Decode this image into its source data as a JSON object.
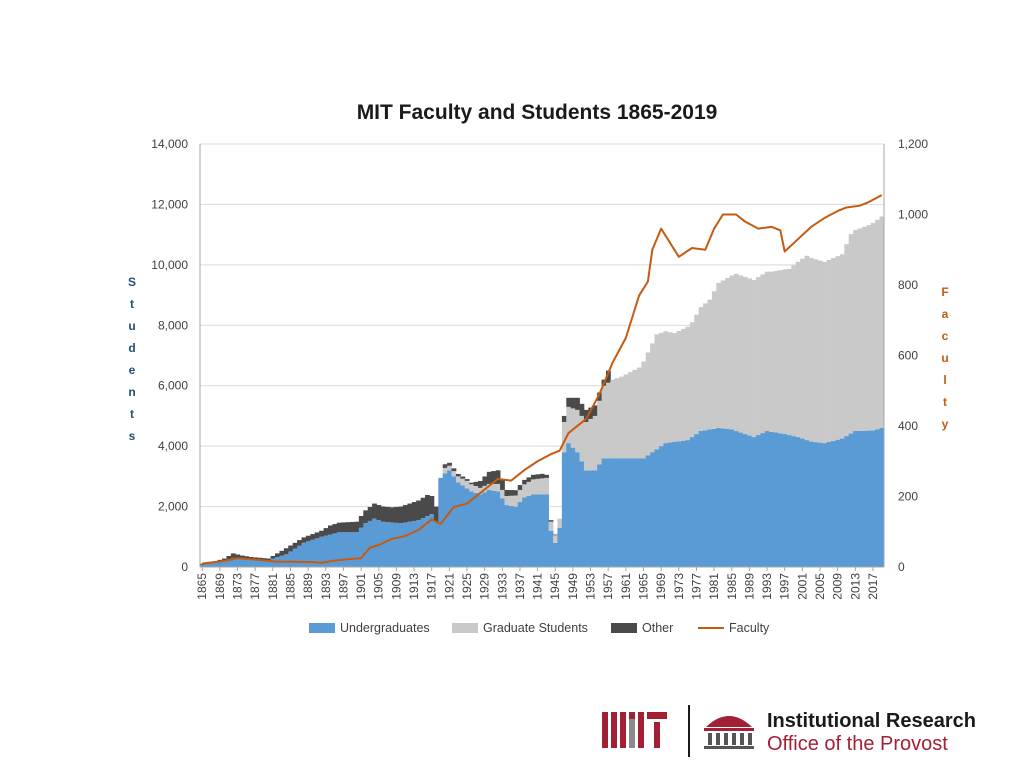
{
  "chart_data": {
    "type": "area",
    "title": "MIT Faculty and Students 1865-2019",
    "ylabel": "Students",
    "y2label": "Faculty",
    "ylim": [
      0,
      14000
    ],
    "y2lim": [
      0,
      1200
    ],
    "yticks": [
      "0",
      "2,000",
      "4,000",
      "6,000",
      "8,000",
      "10,000",
      "12,000",
      "14,000"
    ],
    "y2ticks": [
      "0",
      "200",
      "400",
      "600",
      "800",
      "1,000",
      "1,200"
    ],
    "xtick_labels": [
      "1865",
      "1869",
      "1873",
      "1877",
      "1881",
      "1885",
      "1889",
      "1893",
      "1897",
      "1901",
      "1905",
      "1909",
      "1913",
      "1917",
      "1921",
      "1925",
      "1929",
      "1933",
      "1937",
      "1941",
      "1945",
      "1949",
      "1953",
      "1957",
      "1961",
      "1965",
      "1969",
      "1973",
      "1977",
      "1981",
      "1985",
      "1989",
      "1993",
      "1997",
      "2001",
      "2005",
      "2009",
      "2013",
      "2017"
    ],
    "legend_position": "bottom",
    "grid": true,
    "series": [
      {
        "name": "Undergraduates",
        "color": "#5b9bd5",
        "kind": "stacked-bar",
        "points": [
          [
            1865,
            70
          ],
          [
            1868,
            140
          ],
          [
            1870,
            220
          ],
          [
            1872,
            300
          ],
          [
            1874,
            300
          ],
          [
            1876,
            260
          ],
          [
            1880,
            230
          ],
          [
            1884,
            420
          ],
          [
            1888,
            800
          ],
          [
            1892,
            1000
          ],
          [
            1896,
            1150
          ],
          [
            1900,
            1150
          ],
          [
            1902,
            1450
          ],
          [
            1904,
            1600
          ],
          [
            1906,
            1500
          ],
          [
            1910,
            1450
          ],
          [
            1914,
            1550
          ],
          [
            1917,
            1750
          ],
          [
            1918,
            1500
          ],
          [
            1919,
            2950
          ],
          [
            1920,
            3100
          ],
          [
            1921,
            3200
          ],
          [
            1923,
            2800
          ],
          [
            1926,
            2500
          ],
          [
            1928,
            2400
          ],
          [
            1930,
            2550
          ],
          [
            1932,
            2500
          ],
          [
            1934,
            2050
          ],
          [
            1936,
            2000
          ],
          [
            1938,
            2300
          ],
          [
            1940,
            2400
          ],
          [
            1943,
            2400
          ],
          [
            1944,
            1200
          ],
          [
            1945,
            800
          ],
          [
            1946,
            1300
          ],
          [
            1947,
            3800
          ],
          [
            1948,
            4100
          ],
          [
            1950,
            3800
          ],
          [
            1951,
            3500
          ],
          [
            1952,
            3200
          ],
          [
            1954,
            3200
          ],
          [
            1956,
            3600
          ],
          [
            1960,
            3600
          ],
          [
            1965,
            3600
          ],
          [
            1970,
            4100
          ],
          [
            1975,
            4200
          ],
          [
            1978,
            4500
          ],
          [
            1982,
            4600
          ],
          [
            1985,
            4550
          ],
          [
            1990,
            4300
          ],
          [
            1993,
            4500
          ],
          [
            1997,
            4400
          ],
          [
            2000,
            4300
          ],
          [
            2003,
            4150
          ],
          [
            2006,
            4100
          ],
          [
            2010,
            4250
          ],
          [
            2013,
            4500
          ],
          [
            2017,
            4520
          ],
          [
            2019,
            4600
          ]
        ]
      },
      {
        "name": "Graduate Students",
        "color": "#c9c9c9",
        "kind": "stacked-bar",
        "points": [
          [
            1865,
            0
          ],
          [
            1900,
            0
          ],
          [
            1919,
            0
          ],
          [
            1920,
            180
          ],
          [
            1921,
            150
          ],
          [
            1925,
            250
          ],
          [
            1930,
            200
          ],
          [
            1934,
            300
          ],
          [
            1940,
            500
          ],
          [
            1943,
            550
          ],
          [
            1944,
            300
          ],
          [
            1945,
            250
          ],
          [
            1946,
            300
          ],
          [
            1947,
            1000
          ],
          [
            1948,
            1200
          ],
          [
            1950,
            1400
          ],
          [
            1952,
            1600
          ],
          [
            1954,
            1800
          ],
          [
            1956,
            2400
          ],
          [
            1958,
            2600
          ],
          [
            1960,
            2700
          ],
          [
            1964,
            3000
          ],
          [
            1968,
            3800
          ],
          [
            1970,
            3700
          ],
          [
            1972,
            3600
          ],
          [
            1974,
            3700
          ],
          [
            1976,
            3800
          ],
          [
            1978,
            4100
          ],
          [
            1980,
            4300
          ],
          [
            1982,
            4800
          ],
          [
            1986,
            5200
          ],
          [
            1990,
            5200
          ],
          [
            1994,
            5300
          ],
          [
            1998,
            5500
          ],
          [
            2002,
            6100
          ],
          [
            2006,
            6000
          ],
          [
            2010,
            6100
          ],
          [
            2012,
            6600
          ],
          [
            2016,
            6800
          ],
          [
            2019,
            7000
          ]
        ]
      },
      {
        "name": "Other",
        "color": "#4a4a4a",
        "kind": "stacked-bar",
        "points": [
          [
            1865,
            40
          ],
          [
            1870,
            60
          ],
          [
            1872,
            150
          ],
          [
            1874,
            80
          ],
          [
            1880,
            50
          ],
          [
            1884,
            200
          ],
          [
            1888,
            180
          ],
          [
            1892,
            200
          ],
          [
            1894,
            300
          ],
          [
            1900,
            350
          ],
          [
            1904,
            500
          ],
          [
            1908,
            500
          ],
          [
            1912,
            600
          ],
          [
            1916,
            700
          ],
          [
            1918,
            500
          ],
          [
            1919,
            0
          ],
          [
            1920,
            120
          ],
          [
            1921,
            100
          ],
          [
            1926,
            50
          ],
          [
            1930,
            400
          ],
          [
            1932,
            450
          ],
          [
            1934,
            200
          ],
          [
            1938,
            150
          ],
          [
            1942,
            150
          ],
          [
            1944,
            50
          ],
          [
            1946,
            0
          ],
          [
            1947,
            200
          ],
          [
            1948,
            300
          ],
          [
            1950,
            400
          ],
          [
            1952,
            400
          ],
          [
            1954,
            350
          ],
          [
            1956,
            200
          ],
          [
            1957,
            400
          ],
          [
            1958,
            0
          ],
          [
            2019,
            0
          ]
        ]
      },
      {
        "name": "Faculty",
        "color": "#c55a11",
        "kind": "line",
        "axis": "right",
        "points": [
          [
            1865,
            10
          ],
          [
            1870,
            17
          ],
          [
            1873,
            25
          ],
          [
            1878,
            20
          ],
          [
            1882,
            15
          ],
          [
            1886,
            15
          ],
          [
            1890,
            14
          ],
          [
            1892,
            12
          ],
          [
            1895,
            18
          ],
          [
            1898,
            22
          ],
          [
            1901,
            25
          ],
          [
            1903,
            55
          ],
          [
            1905,
            62
          ],
          [
            1908,
            80
          ],
          [
            1911,
            88
          ],
          [
            1914,
            105
          ],
          [
            1917,
            135
          ],
          [
            1919,
            122
          ],
          [
            1922,
            170
          ],
          [
            1925,
            180
          ],
          [
            1928,
            210
          ],
          [
            1932,
            250
          ],
          [
            1935,
            245
          ],
          [
            1938,
            275
          ],
          [
            1941,
            300
          ],
          [
            1944,
            320
          ],
          [
            1946,
            330
          ],
          [
            1948,
            380
          ],
          [
            1952,
            420
          ],
          [
            1955,
            490
          ],
          [
            1958,
            580
          ],
          [
            1961,
            650
          ],
          [
            1964,
            770
          ],
          [
            1966,
            810
          ],
          [
            1967,
            900
          ],
          [
            1969,
            960
          ],
          [
            1971,
            920
          ],
          [
            1973,
            880
          ],
          [
            1976,
            905
          ],
          [
            1979,
            900
          ],
          [
            1981,
            960
          ],
          [
            1983,
            1000
          ],
          [
            1986,
            1000
          ],
          [
            1988,
            980
          ],
          [
            1991,
            960
          ],
          [
            1994,
            965
          ],
          [
            1996,
            955
          ],
          [
            1997,
            895
          ],
          [
            2000,
            930
          ],
          [
            2003,
            965
          ],
          [
            2006,
            990
          ],
          [
            2009,
            1010
          ],
          [
            2011,
            1020
          ],
          [
            2014,
            1025
          ],
          [
            2016,
            1035
          ],
          [
            2019,
            1055
          ]
        ]
      }
    ]
  },
  "branding": {
    "logo_text": "MIT",
    "line1": "Institutional Research",
    "line2": "Office of the Provost"
  },
  "colors": {
    "undergrad": "#5b9bd5",
    "grad": "#c9c9c9",
    "other": "#4a4a4a",
    "faculty": "#c55a11",
    "students_label": "#1f4e79",
    "mit_red": "#a31f34"
  }
}
